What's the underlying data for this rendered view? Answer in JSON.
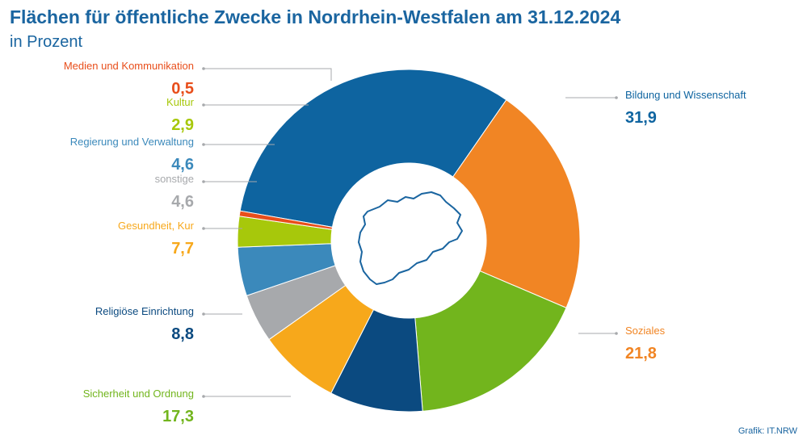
{
  "title": "Flächen für öffentliche Zwecke in Nordrhein-Westfalen am 31.12.2024",
  "subtitle": "in Prozent",
  "credit": "Grafik: IT.NRW",
  "chart_data": {
    "type": "pie",
    "variant": "donut",
    "title": "Flächen für öffentliche Zwecke in Nordrhein-Westfalen am 31.12.2024",
    "subtitle": "in Prozent",
    "center_graphic": "nrw-outline-map",
    "slices": [
      {
        "label": "Bildung und Wissenschaft",
        "value": 31.9,
        "display": "31,9",
        "color": "#0e64a0",
        "side": "right"
      },
      {
        "label": "Soziales",
        "value": 21.8,
        "display": "21,8",
        "color": "#f18524",
        "side": "right"
      },
      {
        "label": "Sicherheit und Ordnung",
        "value": 17.3,
        "display": "17,3",
        "color": "#72b51d",
        "side": "left"
      },
      {
        "label": "Religiöse Einrichtung",
        "value": 8.8,
        "display": "8,8",
        "color": "#0b4a80",
        "side": "left"
      },
      {
        "label": "Gesundheit, Kur",
        "value": 7.7,
        "display": "7,7",
        "color": "#f7a81b",
        "side": "left"
      },
      {
        "label": "sonstige",
        "value": 4.6,
        "display": "4,6",
        "color": "#a7a9ac",
        "side": "left"
      },
      {
        "label": "Regierung und Verwaltung",
        "value": 4.6,
        "display": "4,6",
        "color": "#3b89bb",
        "side": "left"
      },
      {
        "label": "Kultur",
        "value": 2.9,
        "display": "2,9",
        "color": "#a7c80b",
        "side": "left"
      },
      {
        "label": "Medien und Kommunikation",
        "value": 0.5,
        "display": "0,5",
        "color": "#e84e1b",
        "side": "left"
      }
    ]
  }
}
